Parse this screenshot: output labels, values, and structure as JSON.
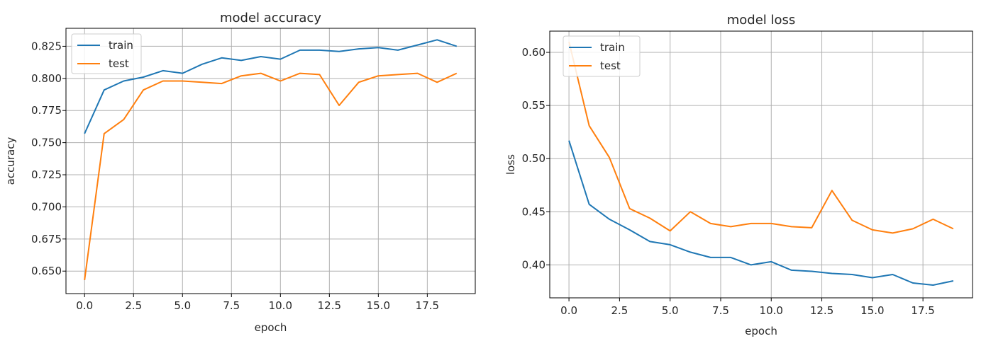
{
  "chart_data": [
    {
      "type": "line",
      "title": "model accuracy",
      "xlabel": "epoch",
      "ylabel": "accuracy",
      "xlim": [
        -0.95,
        19.95
      ],
      "ylim": [
        0.6325,
        0.839
      ],
      "grid": true,
      "legend_position": "top-left",
      "xticks": [
        0,
        2.5,
        5,
        7.5,
        10,
        12.5,
        15,
        17.5
      ],
      "xtick_labels": [
        "0.0",
        "2.5",
        "5.0",
        "7.5",
        "10.0",
        "12.5",
        "15.0",
        "17.5"
      ],
      "yticks": [
        0.65,
        0.675,
        0.7,
        0.725,
        0.75,
        0.775,
        0.8,
        0.825
      ],
      "ytick_labels": [
        "0.650",
        "0.675",
        "0.700",
        "0.725",
        "0.750",
        "0.775",
        "0.800",
        "0.825"
      ],
      "x": [
        0,
        1,
        2,
        3,
        4,
        5,
        6,
        7,
        8,
        9,
        10,
        11,
        12,
        13,
        14,
        15,
        16,
        17,
        18,
        19
      ],
      "series": [
        {
          "name": "train",
          "color": "#1f77b4",
          "values": [
            0.757,
            0.791,
            0.798,
            0.801,
            0.806,
            0.804,
            0.811,
            0.816,
            0.814,
            0.817,
            0.815,
            0.822,
            0.822,
            0.821,
            0.823,
            0.824,
            0.822,
            0.826,
            0.83,
            0.825
          ]
        },
        {
          "name": "test",
          "color": "#ff7f0e",
          "values": [
            0.643,
            0.757,
            0.768,
            0.791,
            0.798,
            0.798,
            0.797,
            0.796,
            0.802,
            0.804,
            0.798,
            0.804,
            0.803,
            0.779,
            0.797,
            0.802,
            0.803,
            0.804,
            0.797,
            0.804
          ]
        }
      ]
    },
    {
      "type": "line",
      "title": "model loss",
      "xlabel": "epoch",
      "ylabel": "loss",
      "xlim": [
        -0.95,
        19.95
      ],
      "ylim": [
        0.369,
        0.62
      ],
      "grid": true,
      "legend_position": "top-left",
      "xticks": [
        0,
        2.5,
        5,
        7.5,
        10,
        12.5,
        15,
        17.5
      ],
      "xtick_labels": [
        "0.0",
        "2.5",
        "5.0",
        "7.5",
        "10.0",
        "12.5",
        "15.0",
        "17.5"
      ],
      "yticks": [
        0.4,
        0.45,
        0.5,
        0.55,
        0.6
      ],
      "ytick_labels": [
        "0.40",
        "0.45",
        "0.50",
        "0.55",
        "0.60"
      ],
      "x": [
        0,
        1,
        2,
        3,
        4,
        5,
        6,
        7,
        8,
        9,
        10,
        11,
        12,
        13,
        14,
        15,
        16,
        17,
        18,
        19
      ],
      "series": [
        {
          "name": "train",
          "color": "#1f77b4",
          "values": [
            0.517,
            0.457,
            0.443,
            0.433,
            0.422,
            0.419,
            0.412,
            0.407,
            0.407,
            0.4,
            0.403,
            0.395,
            0.394,
            0.392,
            0.391,
            0.388,
            0.391,
            0.383,
            0.381,
            0.385
          ]
        },
        {
          "name": "test",
          "color": "#ff7f0e",
          "values": [
            0.61,
            0.531,
            0.501,
            0.453,
            0.444,
            0.432,
            0.45,
            0.439,
            0.436,
            0.439,
            0.439,
            0.436,
            0.435,
            0.47,
            0.442,
            0.433,
            0.43,
            0.434,
            0.443,
            0.434
          ]
        }
      ]
    }
  ]
}
